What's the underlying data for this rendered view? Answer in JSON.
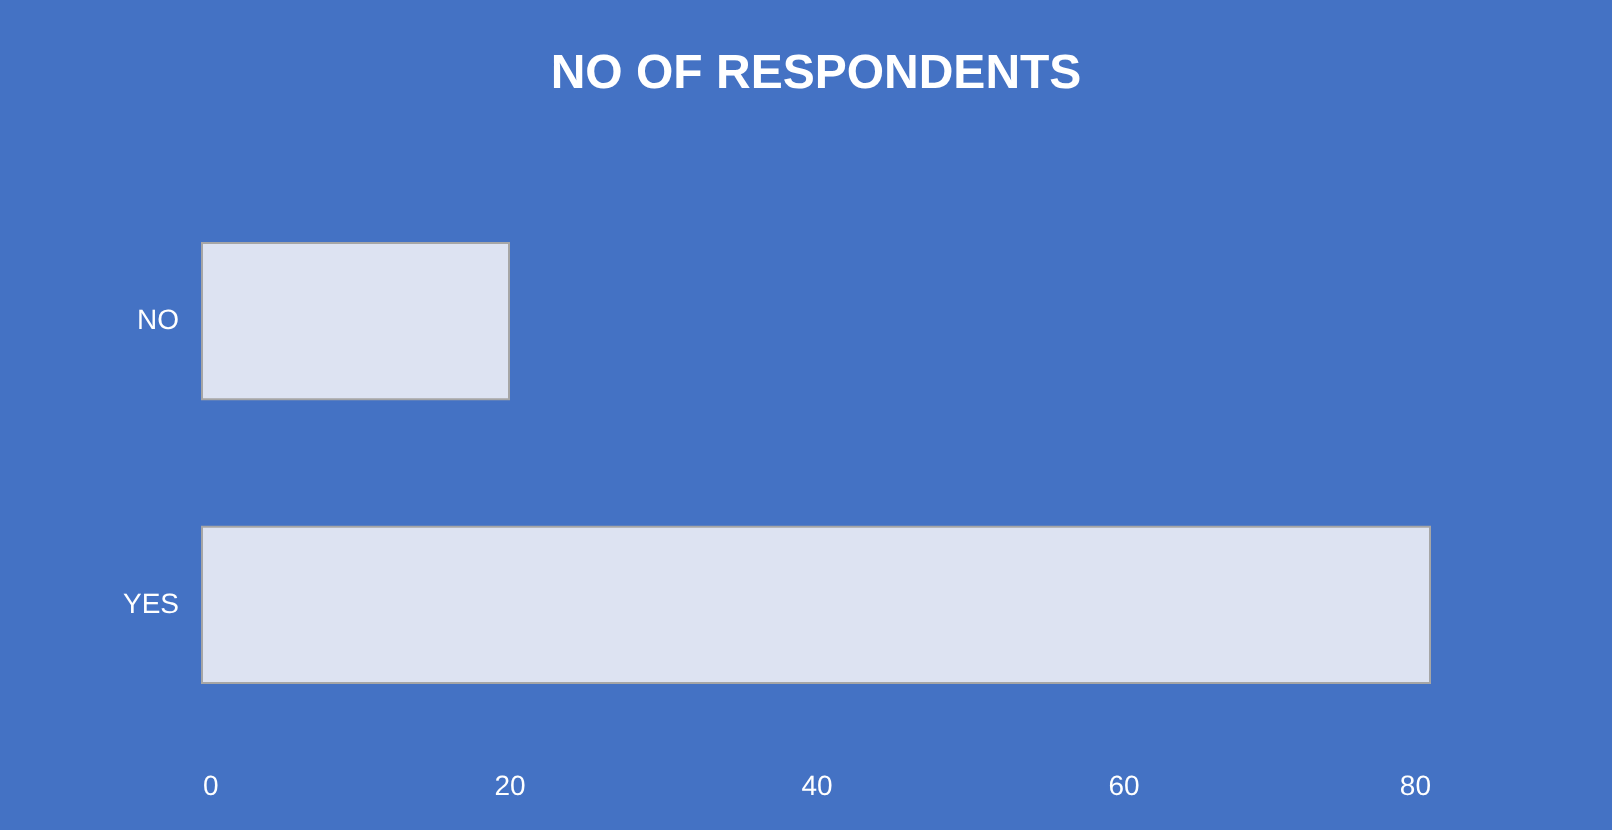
{
  "chart_data": {
    "type": "bar",
    "orientation": "horizontal",
    "title": "NO OF RESPONDENTS",
    "categories": [
      "NO",
      "YES"
    ],
    "values": [
      20,
      80
    ],
    "color": "#dde3f2",
    "xlim": [
      0,
      80
    ],
    "xticks": [
      0,
      20,
      40,
      60,
      80
    ],
    "grid": false
  }
}
